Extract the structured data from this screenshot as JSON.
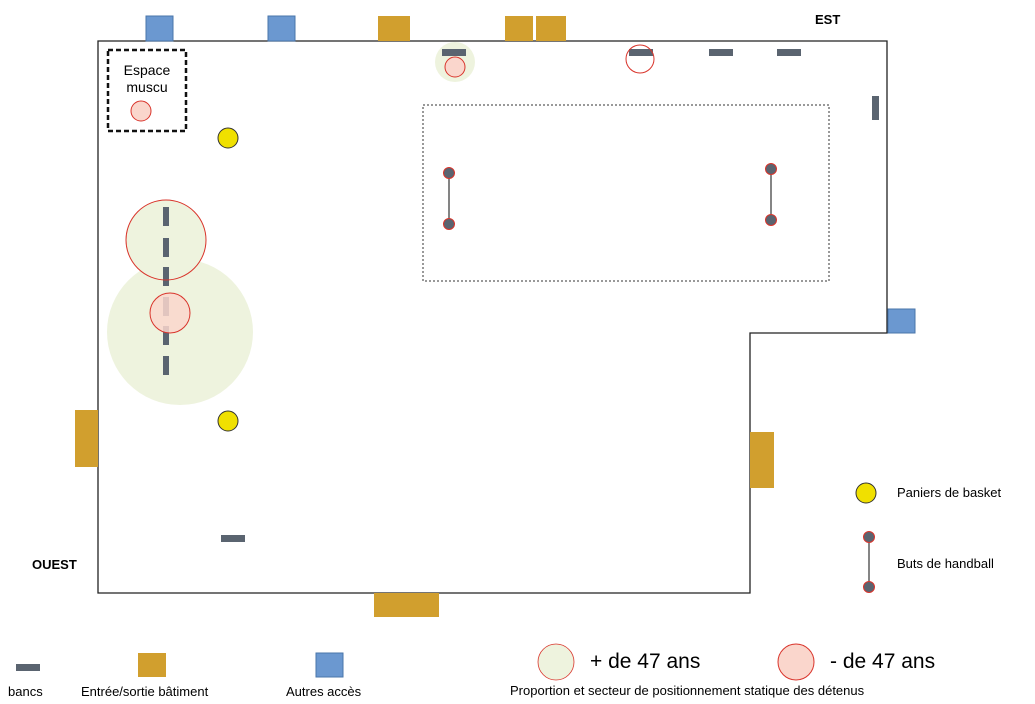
{
  "compass": {
    "east": "EST",
    "west": "OUEST"
  },
  "zones": {
    "musculation": "Espace\nmuscu"
  },
  "legend": {
    "basketball": "Paniers de basket",
    "handball": "Buts de handball",
    "benches": "bancs",
    "building_exit": "Entrée/sortie bâtiment",
    "other_access": "Autres accès",
    "older": "+ de 47 ans",
    "younger": "- de 47 ans",
    "caption": "Proportion et secteur de positionnement statique des détenus"
  },
  "colors": {
    "bench": "#5a6470",
    "building_exit": "#d19f2e",
    "other_access": "#6b98d0",
    "basket": "#f0e000",
    "older_fill": "#eef3de",
    "younger_fill": "#fad6cc",
    "younger_stroke": "#d9342b"
  }
}
